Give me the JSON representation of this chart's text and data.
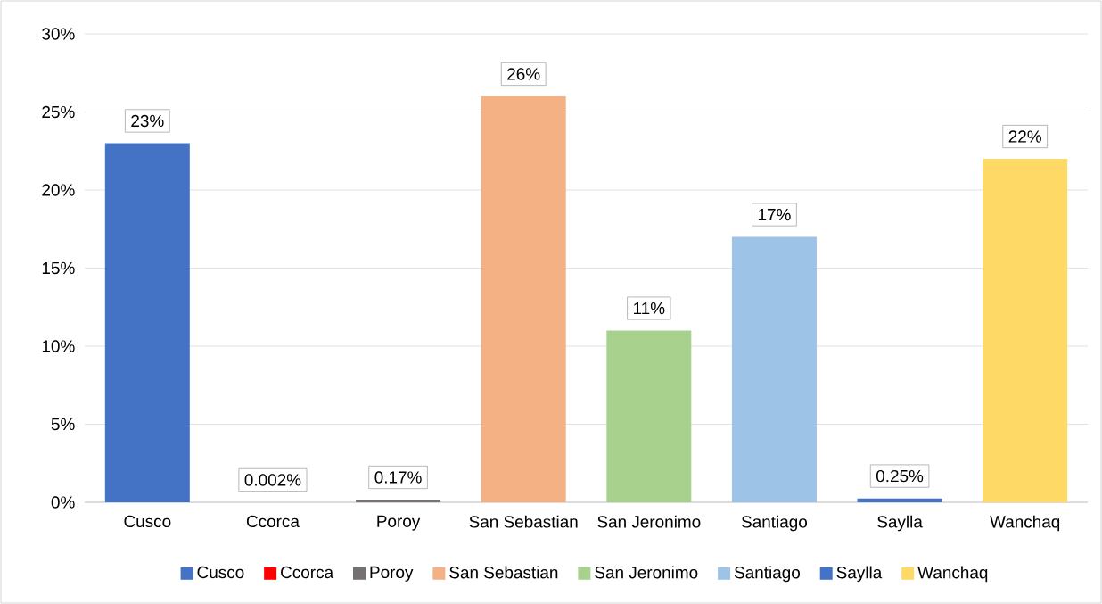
{
  "chart_data": {
    "type": "bar",
    "categories": [
      "Cusco",
      "Ccorca",
      "Poroy",
      "San Sebastian",
      "San Jeronimo",
      "Santiago",
      "Saylla",
      "Wanchaq"
    ],
    "series": [
      {
        "name": "Cusco",
        "color": "#4472c4",
        "values": [
          23,
          null,
          null,
          null,
          null,
          null,
          null,
          null
        ],
        "value_labels": [
          "23%",
          null,
          null,
          null,
          null,
          null,
          null,
          null
        ]
      },
      {
        "name": "Ccorca",
        "color": "#ff0000",
        "values": [
          null,
          0.002,
          null,
          null,
          null,
          null,
          null,
          null
        ],
        "value_labels": [
          null,
          "0.002%",
          null,
          null,
          null,
          null,
          null,
          null
        ]
      },
      {
        "name": "Poroy",
        "color": "#767171",
        "values": [
          null,
          null,
          0.17,
          null,
          null,
          null,
          null,
          null
        ],
        "value_labels": [
          null,
          null,
          "0.17%",
          null,
          null,
          null,
          null,
          null
        ]
      },
      {
        "name": "San Sebastian",
        "color": "#f4b183",
        "values": [
          null,
          null,
          null,
          26,
          null,
          null,
          null,
          null
        ],
        "value_labels": [
          null,
          null,
          null,
          "26%",
          null,
          null,
          null,
          null
        ]
      },
      {
        "name": "San Jeronimo",
        "color": "#a9d18e",
        "values": [
          null,
          null,
          null,
          null,
          11,
          null,
          null,
          null
        ],
        "value_labels": [
          null,
          null,
          null,
          null,
          "11%",
          null,
          null,
          null
        ]
      },
      {
        "name": "Santiago",
        "color": "#9dc3e6",
        "values": [
          null,
          null,
          null,
          null,
          null,
          17,
          null,
          null
        ],
        "value_labels": [
          null,
          null,
          null,
          null,
          null,
          "17%",
          null,
          null
        ]
      },
      {
        "name": "Saylla",
        "color": "#4472c4",
        "values": [
          null,
          null,
          null,
          null,
          null,
          null,
          0.25,
          null
        ],
        "value_labels": [
          null,
          null,
          null,
          null,
          null,
          null,
          "0.25%",
          null
        ]
      },
      {
        "name": "Wanchaq",
        "color": "#ffd966",
        "values": [
          null,
          null,
          null,
          null,
          null,
          null,
          null,
          22
        ],
        "value_labels": [
          null,
          null,
          null,
          null,
          null,
          null,
          null,
          "22%"
        ]
      }
    ],
    "ylim": [
      0,
      30
    ],
    "yticks": [
      {
        "value": 0,
        "label": "0%"
      },
      {
        "value": 5,
        "label": "5%"
      },
      {
        "value": 10,
        "label": "10%"
      },
      {
        "value": 15,
        "label": "15%"
      },
      {
        "value": 20,
        "label": "20%"
      },
      {
        "value": 25,
        "label": "25%"
      },
      {
        "value": 30,
        "label": "30%"
      }
    ],
    "grid": "y",
    "legend": "bottom"
  }
}
